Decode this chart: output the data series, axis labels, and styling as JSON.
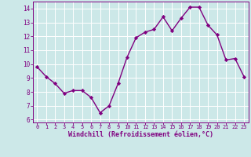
{
  "x": [
    0,
    1,
    2,
    3,
    4,
    5,
    6,
    7,
    8,
    9,
    10,
    11,
    12,
    13,
    14,
    15,
    16,
    17,
    18,
    19,
    20,
    21,
    22,
    23
  ],
  "y": [
    9.8,
    9.1,
    8.6,
    7.9,
    8.1,
    8.1,
    7.6,
    6.5,
    7.0,
    8.6,
    10.5,
    11.9,
    12.3,
    12.5,
    13.4,
    12.4,
    13.3,
    14.1,
    14.1,
    12.8,
    12.1,
    10.3,
    10.4,
    9.1
  ],
  "line_color": "#800080",
  "marker": "D",
  "marker_size": 2.2,
  "line_width": 1.0,
  "bg_color": "#cce8e8",
  "grid_color": "#ffffff",
  "xlabel": "Windchill (Refroidissement éolien,°C)",
  "tick_color": "#800080",
  "ylim": [
    5.8,
    14.5
  ],
  "xlim": [
    -0.5,
    23.5
  ],
  "yticks": [
    6,
    7,
    8,
    9,
    10,
    11,
    12,
    13,
    14
  ],
  "xticks": [
    0,
    1,
    2,
    3,
    4,
    5,
    6,
    7,
    8,
    9,
    10,
    11,
    12,
    13,
    14,
    15,
    16,
    17,
    18,
    19,
    20,
    21,
    22,
    23
  ]
}
